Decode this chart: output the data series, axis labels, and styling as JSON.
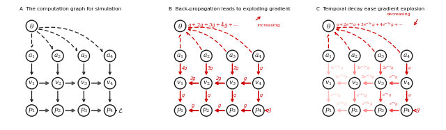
{
  "panel_A_title": "A  The computation graph for simulation",
  "panel_B_title": "B  Back-propagation leads to exploding gradient",
  "panel_C_title": "C  Temporal decay ease gradient explosion",
  "background_color": "#ffffff",
  "black_color": "#1a1a1a",
  "red_color": "#cc0000",
  "gray_color": "#555555",
  "light_red1": "#ffbbbb",
  "light_red2": "#ff8888",
  "light_red3": "#ee4444"
}
